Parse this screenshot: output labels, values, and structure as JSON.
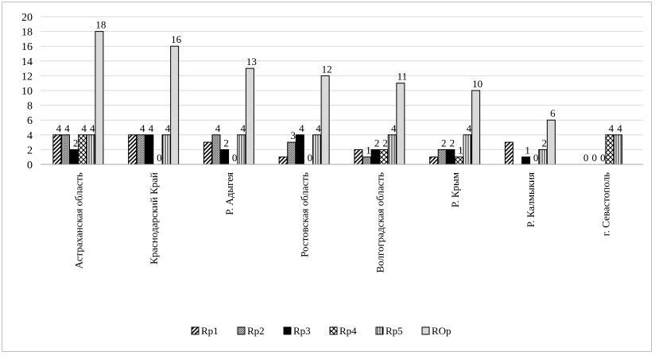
{
  "chart_data": {
    "type": "bar",
    "title": "",
    "xlabel": "",
    "ylabel": "",
    "ylim": [
      0,
      20
    ],
    "yticks": [
      0,
      2,
      4,
      6,
      8,
      10,
      12,
      14,
      16,
      18,
      20
    ],
    "grid": true,
    "legend_position": "bottom",
    "categories": [
      "Астраханская область",
      "Краснодарский Край",
      "Р. Адыгея",
      "Ростовская область",
      "Волгоградская область",
      "Р. Крым",
      "Р. Калмыкия",
      "г. Севастополь"
    ],
    "series": [
      {
        "name": "Rp1",
        "pattern": "diagonal",
        "values": [
          4,
          4,
          3,
          1,
          2,
          1,
          3,
          0
        ],
        "labels": [
          "4",
          "",
          "",
          "",
          "",
          "",
          "",
          "0"
        ]
      },
      {
        "name": "Rp2",
        "pattern": "dotted-gray",
        "values": [
          4,
          4,
          4,
          3,
          1,
          2,
          0,
          0
        ],
        "labels": [
          "4",
          "4",
          "4",
          "3",
          "1",
          "2",
          "",
          "0"
        ]
      },
      {
        "name": "Rp3",
        "pattern": "solid-black",
        "values": [
          2,
          4,
          2,
          4,
          2,
          2,
          1,
          0
        ],
        "labels": [
          "2",
          "4",
          "2",
          "4",
          "2",
          "2",
          "1",
          "0"
        ]
      },
      {
        "name": "Rp4",
        "pattern": "cross",
        "values": [
          4,
          0,
          0,
          0,
          2,
          1,
          0,
          4
        ],
        "labels": [
          "4",
          "0",
          "0",
          "0",
          "2",
          "1",
          "0",
          "4"
        ]
      },
      {
        "name": "Rp5",
        "pattern": "vertical",
        "values": [
          4,
          4,
          4,
          4,
          4,
          4,
          2,
          4
        ],
        "labels": [
          "4",
          "4",
          "4",
          "4",
          "4",
          "4",
          "2",
          "4"
        ]
      },
      {
        "name": "ROp",
        "pattern": "light-gray",
        "values": [
          18,
          16,
          13,
          12,
          11,
          10,
          6,
          0
        ],
        "labels": [
          "18",
          "16",
          "13",
          "12",
          "11",
          "10",
          "6",
          ""
        ]
      }
    ]
  },
  "colors": {
    "grid": "#d9d9d9",
    "axis": "#a6a6a6",
    "bar_stroke": "#000000",
    "light_gray": "#d9d9d9",
    "dotted_gray": "#7f7f7f"
  }
}
